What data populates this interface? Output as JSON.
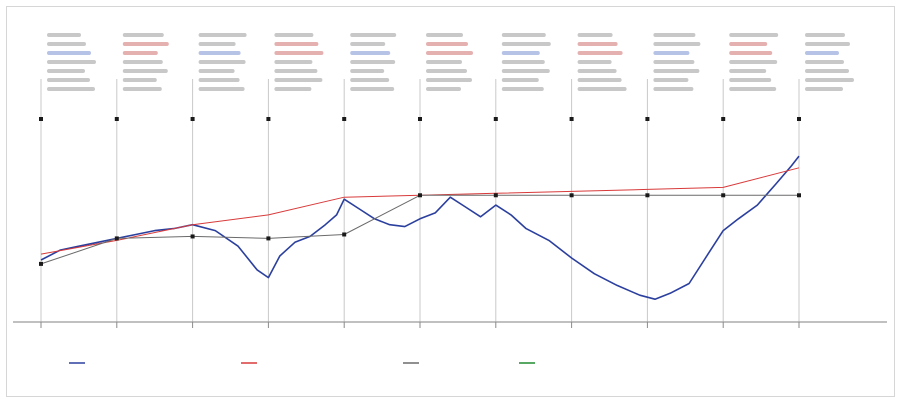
{
  "chart_data": {
    "type": "line",
    "colors": {
      "blue_series": "#2b3f9e",
      "red_series": "#d83a3a",
      "gray_series": "#6a6a6a",
      "green_series": "#1f8a2e",
      "frame": "#d6d6d6",
      "marker": "#1a1a1a"
    },
    "grid": "vertical-lines-at-ticks",
    "legend": "bottom",
    "xlim": [
      0,
      10
    ],
    "ylim": [
      0,
      1
    ],
    "x_ticks": [
      0,
      1,
      2,
      3,
      4,
      5,
      6,
      7,
      8,
      9,
      10
    ],
    "marker_x": [
      0,
      1,
      2,
      3,
      4,
      5,
      6,
      7,
      8,
      9,
      10
    ],
    "annotation_count": 11,
    "series": [
      {
        "color": "blue_series",
        "x": [
          0,
          0.25,
          0.5,
          0.75,
          1,
          1.25,
          1.5,
          1.75,
          2,
          2.3,
          2.6,
          2.85,
          3,
          3.15,
          3.35,
          3.55,
          3.75,
          3.9,
          4,
          4.2,
          4.4,
          4.6,
          4.8,
          5,
          5.2,
          5.4,
          5.6,
          5.8,
          6,
          6.2,
          6.4,
          6.7,
          7,
          7.3,
          7.6,
          7.9,
          8.1,
          8.3,
          8.55,
          8.8,
          9,
          9.2,
          9.45,
          9.7,
          9.9,
          10
        ],
        "y": [
          0.24,
          0.29,
          0.31,
          0.33,
          0.35,
          0.37,
          0.39,
          0.4,
          0.42,
          0.39,
          0.31,
          0.19,
          0.15,
          0.26,
          0.33,
          0.36,
          0.42,
          0.47,
          0.55,
          0.5,
          0.45,
          0.42,
          0.41,
          0.45,
          0.48,
          0.56,
          0.51,
          0.46,
          0.52,
          0.47,
          0.4,
          0.34,
          0.25,
          0.17,
          0.11,
          0.06,
          0.04,
          0.07,
          0.12,
          0.27,
          0.39,
          0.45,
          0.52,
          0.63,
          0.72,
          0.77
        ]
      },
      {
        "color": "red_series",
        "x": [
          0,
          1,
          2,
          3,
          4,
          5,
          6,
          7,
          8,
          9,
          10
        ],
        "y": [
          0.27,
          0.34,
          0.42,
          0.47,
          0.56,
          0.57,
          0.58,
          0.59,
          0.6,
          0.61,
          0.71
        ]
      },
      {
        "color": "gray_series",
        "x": [
          0,
          1,
          2,
          3,
          4,
          5,
          6,
          7,
          8,
          9,
          10
        ],
        "y": [
          0.22,
          0.35,
          0.36,
          0.35,
          0.37,
          0.57,
          0.57,
          0.57,
          0.57,
          0.57,
          0.57
        ]
      }
    ],
    "legend_entries": [
      {
        "color": "blue_series"
      },
      {
        "color": "red_series"
      },
      {
        "color": "gray_series"
      },
      {
        "color": "green_series"
      }
    ]
  }
}
